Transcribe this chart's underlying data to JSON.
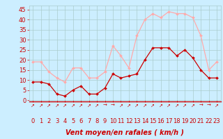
{
  "x": [
    0,
    1,
    2,
    3,
    4,
    5,
    6,
    7,
    8,
    9,
    10,
    11,
    12,
    13,
    14,
    15,
    16,
    17,
    18,
    19,
    20,
    21,
    22,
    23
  ],
  "wind_mean": [
    9,
    9,
    8,
    3,
    2,
    5,
    7,
    3,
    3,
    6,
    13,
    11,
    12,
    13,
    20,
    26,
    26,
    26,
    22,
    25,
    21,
    15,
    11,
    11
  ],
  "wind_gust": [
    19,
    19,
    14,
    11,
    9,
    16,
    16,
    11,
    11,
    14,
    27,
    22,
    16,
    32,
    40,
    43,
    41,
    44,
    43,
    43,
    41,
    32,
    15,
    19
  ],
  "bg_color": "#cceeff",
  "grid_color": "#aacccc",
  "line_mean_color": "#cc0000",
  "line_gust_color": "#ffaaaa",
  "marker_color_mean": "#cc0000",
  "marker_color_gust": "#ffaaaa",
  "xlabel": "Vent moyen/en rafales ( km/h )",
  "xlim": [
    -0.5,
    23.5
  ],
  "ylim": [
    0,
    47
  ],
  "yticks": [
    0,
    5,
    10,
    15,
    20,
    25,
    30,
    35,
    40,
    45
  ],
  "xticks": [
    0,
    1,
    2,
    3,
    4,
    5,
    6,
    7,
    8,
    9,
    10,
    11,
    12,
    13,
    14,
    15,
    16,
    17,
    18,
    19,
    20,
    21,
    22,
    23
  ],
  "arrow_row": [
    2,
    2,
    2,
    3,
    3,
    3,
    3,
    3,
    3,
    1,
    1,
    1,
    2,
    2,
    2,
    2,
    2,
    2,
    2,
    2,
    2,
    1,
    1,
    2
  ],
  "label_fontsize": 7,
  "tick_fontsize": 6
}
